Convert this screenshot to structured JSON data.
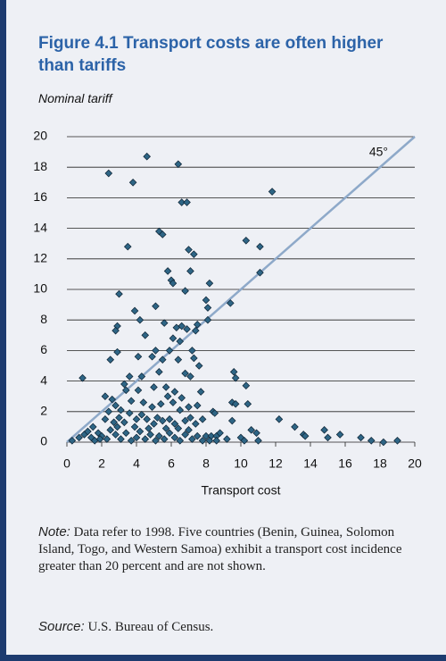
{
  "chart_data": {
    "type": "scatter",
    "title": "Figure 4.1 Transport costs are often higher than tariffs",
    "y_label": "Nominal tariff",
    "x_label": "Transport cost",
    "annotation": "45°",
    "color": "#2e6585",
    "xlim": [
      0,
      20
    ],
    "ylim": [
      0,
      20
    ],
    "xticks": [
      0,
      2,
      4,
      6,
      8,
      10,
      12,
      14,
      16,
      18,
      20
    ],
    "yticks": [
      0,
      2,
      4,
      6,
      8,
      10,
      12,
      14,
      16,
      18,
      20
    ],
    "grid": true,
    "x": [
      0.9,
      2.4,
      3.8,
      4.6,
      6.4,
      6.6,
      6.9,
      11.8,
      3.5,
      5.3,
      5.5,
      10.3,
      11.1,
      5.8,
      6.0,
      6.1,
      7.0,
      7.3,
      7.1,
      8.2,
      6.8,
      8.0,
      8.1,
      11.1,
      9.4,
      3.0,
      3.9,
      5.1,
      4.2,
      6.6,
      6.9,
      7.4,
      7.5,
      6.3,
      2.9,
      2.8,
      5.6,
      4.5,
      6.1,
      6.5,
      8.1,
      2.9,
      2.5,
      4.1,
      5.1,
      4.9,
      5.9,
      6.4,
      7.2,
      7.3,
      7.6,
      5.5,
      5.3,
      4.3,
      3.6,
      3.3,
      4.1,
      3.4,
      5.0,
      5.7,
      6.2,
      6.8,
      7.1,
      7.7,
      9.6,
      9.7,
      10.3,
      9.5,
      10.4,
      9.7,
      2.2,
      2.4,
      2.6,
      2.8,
      3.1,
      3.7,
      4.4,
      4.9,
      5.4,
      5.8,
      6.1,
      6.6,
      7.0,
      6.5,
      7.5,
      8.4,
      8.5,
      2.2,
      2.7,
      3.0,
      3.3,
      3.6,
      4.0,
      4.3,
      4.6,
      5.0,
      5.2,
      5.5,
      5.9,
      6.2,
      6.8,
      7.1,
      7.4,
      7.8,
      8.0,
      8.3,
      8.6,
      8.8,
      9.5,
      10.0,
      10.6,
      10.9,
      12.2,
      13.1,
      13.6,
      13.7,
      14.8,
      15.0,
      15.7,
      16.9,
      17.5,
      18.2,
      19.0,
      0.3,
      0.7,
      1.0,
      1.2,
      1.4,
      1.6,
      1.8,
      2.0,
      2.3,
      2.5,
      2.8,
      3.1,
      3.4,
      3.7,
      4.0,
      4.2,
      4.5,
      4.8,
      5.1,
      5.3,
      5.6,
      5.9,
      6.2,
      6.5,
      6.8,
      7.2,
      7.5,
      7.8,
      8.2,
      8.6,
      9.2,
      10.2,
      11.0,
      2.9,
      3.9,
      4.7,
      5.7,
      6.4,
      7.0,
      1.5,
      1.9
    ],
    "values": [
      4.2,
      17.6,
      17.0,
      18.7,
      18.2,
      15.7,
      15.7,
      16.4,
      12.8,
      13.8,
      13.6,
      13.2,
      12.8,
      11.2,
      10.6,
      10.4,
      12.6,
      12.3,
      11.2,
      10.4,
      9.9,
      9.3,
      8.8,
      11.1,
      9.1,
      9.7,
      8.6,
      8.9,
      8.0,
      7.6,
      7.4,
      7.3,
      7.7,
      7.5,
      7.6,
      7.3,
      7.8,
      7.0,
      6.8,
      6.6,
      8.0,
      5.9,
      5.4,
      5.6,
      6.0,
      5.6,
      6.0,
      5.4,
      6.0,
      5.5,
      5.0,
      5.4,
      4.6,
      4.3,
      4.3,
      3.8,
      3.4,
      3.4,
      3.6,
      3.6,
      3.3,
      4.5,
      4.3,
      3.3,
      4.6,
      4.2,
      3.7,
      2.6,
      2.5,
      2.5,
      3.0,
      2.0,
      2.8,
      2.4,
      2.1,
      2.7,
      2.6,
      2.3,
      2.5,
      3.0,
      2.6,
      2.9,
      2.3,
      2.1,
      2.4,
      2.0,
      1.9,
      1.5,
      1.3,
      1.6,
      1.3,
      1.9,
      1.5,
      1.8,
      1.5,
      1.2,
      1.6,
      1.4,
      1.5,
      1.2,
      1.4,
      1.6,
      1.2,
      1.5,
      0.4,
      0.4,
      0.4,
      0.6,
      1.4,
      0.3,
      0.8,
      0.6,
      1.5,
      1.0,
      0.5,
      0.4,
      0.8,
      0.3,
      0.5,
      0.3,
      0.1,
      0,
      0.1,
      0.1,
      0.3,
      0.5,
      0.7,
      0.3,
      0.1,
      0.6,
      0.4,
      0.2,
      0.8,
      0.5,
      0.2,
      0.6,
      0.1,
      0.3,
      0.7,
      0.2,
      0.5,
      0.1,
      0.4,
      0.2,
      0.6,
      0.3,
      0.1,
      0.5,
      0.2,
      0.4,
      0.1,
      0.1,
      0.1,
      0.2,
      0.1,
      0.1,
      1.0,
      1.0,
      0.9,
      0.9,
      0.9,
      0.8,
      1.0,
      0.2
    ],
    "note_label": "Note:",
    "note_text": "Data refer to 1998. Five countries (Benin, Guinea, Solomon Island, Togo, and Western Samoa) exhibit a transport cost incidence greater than 20 percent and are not shown.",
    "source_label": "Source:",
    "source_text": "U.S. Bureau of Census."
  }
}
